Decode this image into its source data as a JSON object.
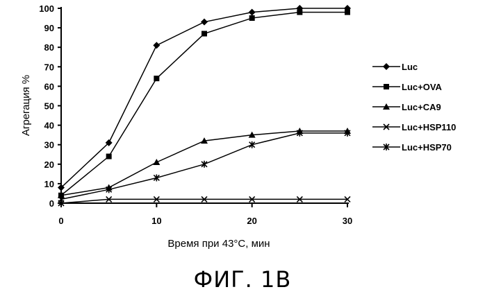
{
  "chart_data": {
    "type": "line",
    "title": "",
    "xlabel": "Время при 43°С, мин",
    "ylabel": "Агрегация %",
    "xlim": [
      0,
      30
    ],
    "ylim": [
      0,
      100
    ],
    "x_ticks": [
      0,
      10,
      20,
      30
    ],
    "y_ticks": [
      0,
      10,
      20,
      30,
      40,
      50,
      60,
      70,
      80,
      90,
      100
    ],
    "legend_position": "right",
    "series": [
      {
        "name": "Luc",
        "marker": "diamond",
        "x": [
          0,
          5,
          10,
          15,
          20,
          25,
          30
        ],
        "values": [
          8,
          31,
          81,
          93,
          98,
          100,
          100
        ]
      },
      {
        "name": "Luc+OVA",
        "marker": "square",
        "x": [
          0,
          5,
          10,
          15,
          20,
          25,
          30
        ],
        "values": [
          4,
          24,
          64,
          87,
          95,
          98,
          98
        ]
      },
      {
        "name": "Luc+CA9",
        "marker": "triangle",
        "x": [
          0,
          5,
          10,
          15,
          20,
          25,
          30
        ],
        "values": [
          4,
          8,
          21,
          32,
          35,
          37,
          37
        ]
      },
      {
        "name": "Luc+HSP110",
        "marker": "x",
        "x": [
          0,
          5,
          10,
          15,
          20,
          25,
          30
        ],
        "values": [
          0,
          2,
          2,
          2,
          2,
          2,
          2
        ]
      },
      {
        "name": "Luc+HSP70",
        "marker": "asterisk",
        "x": [
          0,
          5,
          10,
          15,
          20,
          25,
          30
        ],
        "values": [
          2,
          7,
          13,
          20,
          30,
          36,
          36
        ]
      }
    ]
  },
  "caption": "ФИГ. 1B"
}
